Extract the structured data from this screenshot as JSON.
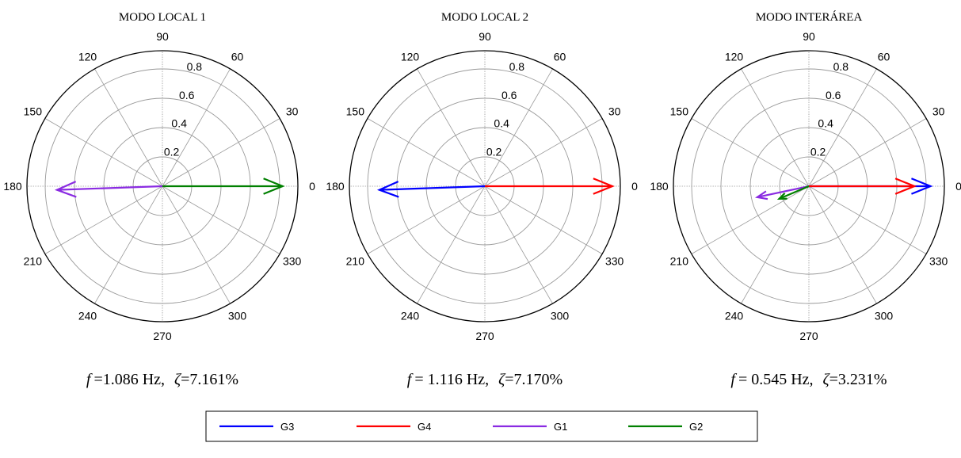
{
  "colors": {
    "G3": "#0000ff",
    "G4": "#ff0000",
    "G1": "#8a2be2",
    "G2": "#008000"
  },
  "chart_data": [
    {
      "type": "polar",
      "title": "MODO LOCAL 1",
      "rlim": [
        0,
        0.8
      ],
      "rticks": [
        "0.2",
        "0.4",
        "0.6",
        "0.8"
      ],
      "angle_ticks": [
        "0",
        "30",
        "60",
        "90",
        "120",
        "150",
        "180",
        "210",
        "240",
        "270",
        "300",
        "330"
      ],
      "caption": {
        "f_symbol": "f",
        "f_text": "=1.086 Hz,",
        "z_symbol": "ζ",
        "z_text": "=7.161%"
      },
      "series": [
        {
          "name": "G3",
          "magnitude": 0.0,
          "angle": 0
        },
        {
          "name": "G4",
          "magnitude": 0.0,
          "angle": 0
        },
        {
          "name": "G1",
          "magnitude": 0.72,
          "angle": 182
        },
        {
          "name": "G2",
          "magnitude": 0.82,
          "angle": 0
        }
      ]
    },
    {
      "type": "polar",
      "title": "MODO LOCAL 2",
      "rlim": [
        0,
        0.8
      ],
      "rticks": [
        "0.2",
        "0.4",
        "0.6",
        "0.8"
      ],
      "angle_ticks": [
        "0",
        "30",
        "60",
        "90",
        "120",
        "150",
        "180",
        "210",
        "240",
        "270",
        "300",
        "330"
      ],
      "caption": {
        "f_symbol": "f",
        "f_text": "= 1.116 Hz,",
        "z_symbol": "ζ",
        "z_text": "=7.170%"
      },
      "series": [
        {
          "name": "G3",
          "magnitude": 0.72,
          "angle": 182
        },
        {
          "name": "G4",
          "magnitude": 0.87,
          "angle": 0
        },
        {
          "name": "G1",
          "magnitude": 0.0,
          "angle": 0
        },
        {
          "name": "G2",
          "magnitude": 0.0,
          "angle": 0
        }
      ]
    },
    {
      "type": "polar",
      "title": "MODO INTERÁREA",
      "rlim": [
        0,
        0.8
      ],
      "rticks": [
        "0.2",
        "0.4",
        "0.6",
        "0.8"
      ],
      "angle_ticks": [
        "0",
        "30",
        "60",
        "90",
        "120",
        "150",
        "180",
        "210",
        "240",
        "270",
        "300",
        "330"
      ],
      "caption": {
        "f_symbol": "f",
        "f_text": "= 0.545 Hz,",
        "z_symbol": "ζ",
        "z_text": "=3.231%"
      },
      "series": [
        {
          "name": "G3",
          "magnitude": 0.83,
          "angle": 0
        },
        {
          "name": "G4",
          "magnitude": 0.72,
          "angle": 0
        },
        {
          "name": "G1",
          "magnitude": 0.36,
          "angle": 192
        },
        {
          "name": "G2",
          "magnitude": 0.22,
          "angle": 203
        }
      ]
    }
  ],
  "legend": [
    {
      "name": "G3"
    },
    {
      "name": "G4"
    },
    {
      "name": "G1"
    },
    {
      "name": "G2"
    }
  ]
}
